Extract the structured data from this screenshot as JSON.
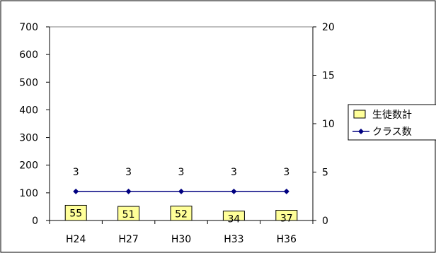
{
  "chart_data": {
    "type": "bar",
    "categories": [
      "H24",
      "H27",
      "H30",
      "H33",
      "H36"
    ],
    "series": [
      {
        "name": "生徒数計",
        "type": "bar",
        "axis": "left",
        "values": [
          55,
          51,
          52,
          34,
          37
        ],
        "color": "#ffff99"
      },
      {
        "name": "クラス数",
        "type": "line",
        "axis": "right",
        "values": [
          3,
          3,
          3,
          3,
          3
        ],
        "color": "#000080"
      }
    ],
    "y_left": {
      "min": 0,
      "max": 700,
      "ticks": [
        0,
        100,
        200,
        300,
        400,
        500,
        600,
        700
      ]
    },
    "y_right": {
      "min": 0,
      "max": 20,
      "ticks": [
        0,
        5,
        10,
        15,
        20
      ]
    },
    "grid": false,
    "legend_position": "right"
  }
}
